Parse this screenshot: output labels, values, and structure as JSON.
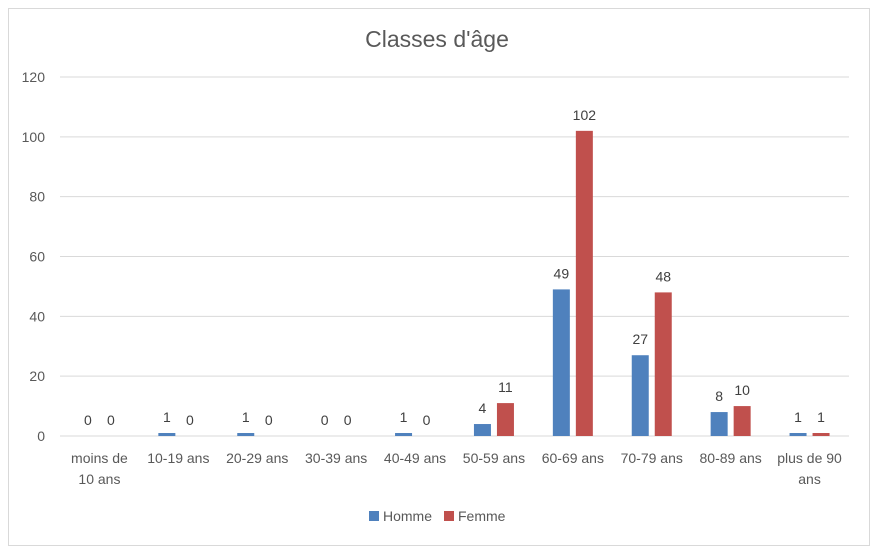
{
  "chart_data": {
    "type": "bar",
    "title": "Classes d'âge",
    "categories": [
      [
        "moins de",
        "10 ans"
      ],
      [
        "10-19 ans"
      ],
      [
        "20-29 ans"
      ],
      [
        "30-39 ans"
      ],
      [
        "40-49 ans"
      ],
      [
        "50-59 ans"
      ],
      [
        "60-69 ans"
      ],
      [
        "70-79 ans"
      ],
      [
        "80-89 ans"
      ],
      [
        "plus de 90",
        "ans"
      ]
    ],
    "series": [
      {
        "name": "Homme",
        "color": "#4f81bd",
        "values": [
          0,
          1,
          1,
          0,
          1,
          4,
          49,
          27,
          8,
          1
        ]
      },
      {
        "name": "Femme",
        "color": "#c0504d",
        "values": [
          0,
          0,
          0,
          0,
          0,
          11,
          102,
          48,
          10,
          1
        ]
      }
    ],
    "ylim": [
      0,
      120
    ],
    "yticks": [
      0,
      20,
      40,
      60,
      80,
      100,
      120
    ],
    "grid": true,
    "legend_position": "bottom",
    "data_labels": true
  }
}
